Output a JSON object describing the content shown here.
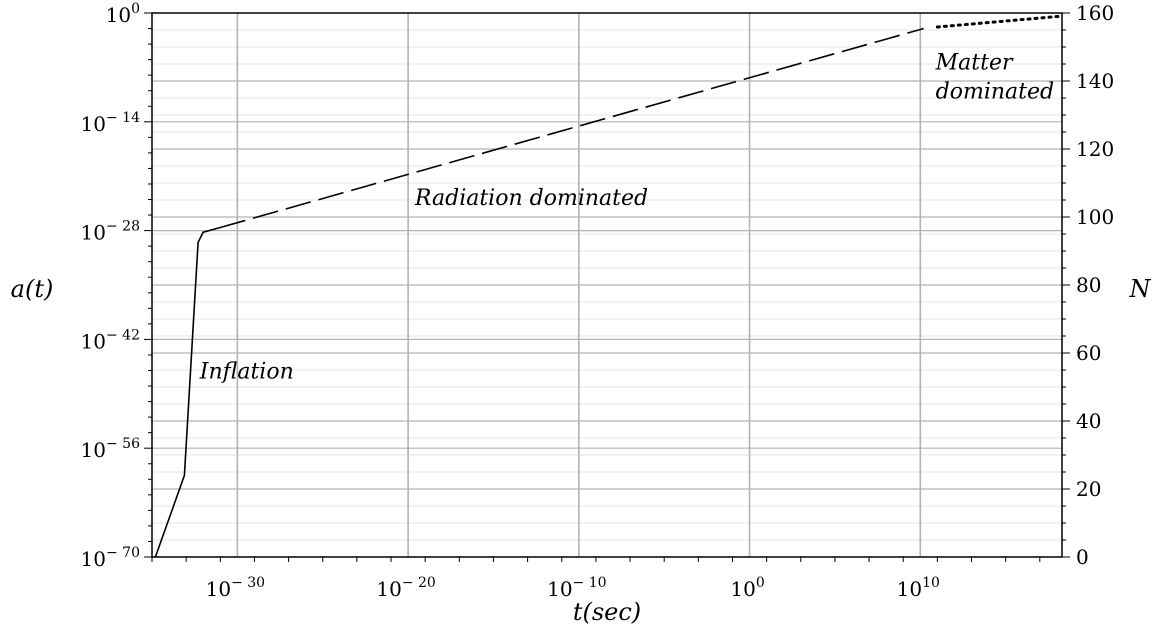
{
  "chart_data": {
    "type": "line",
    "xlabel": "t(sec)",
    "ylabel_left": "a(t)",
    "ylabel_right": "N",
    "x_scale": "log",
    "y_left_scale": "log",
    "xlim_log10": [
      -35,
      18.3
    ],
    "ylim_left_log10": [
      -70,
      0
    ],
    "ylim_right": [
      0,
      160
    ],
    "grid": true,
    "x_ticks": [
      {
        "base": "10",
        "exp": "− 30",
        "log10": -30
      },
      {
        "base": "10",
        "exp": "− 20",
        "log10": -20
      },
      {
        "base": "10",
        "exp": "− 10",
        "log10": -10
      },
      {
        "base": "10",
        "exp": "0",
        "log10": 0
      },
      {
        "base": "10",
        "exp": "10",
        "log10": 10
      }
    ],
    "y_left_ticks": [
      {
        "base": "10",
        "exp": "0",
        "log10": 0
      },
      {
        "base": "10",
        "exp": "− 14",
        "log10": -14
      },
      {
        "base": "10",
        "exp": "− 28",
        "log10": -28
      },
      {
        "base": "10",
        "exp": "− 42",
        "log10": -42
      },
      {
        "base": "10",
        "exp": "− 56",
        "log10": -56
      },
      {
        "base": "10",
        "exp": "− 70",
        "log10": -70
      }
    ],
    "y_right_ticks": [
      {
        "label": "160",
        "value": 160
      },
      {
        "label": "140",
        "value": 140
      },
      {
        "label": "120",
        "value": 120
      },
      {
        "label": "100",
        "value": 100
      },
      {
        "label": "80",
        "value": 80
      },
      {
        "label": "60",
        "value": 60
      },
      {
        "label": "40",
        "value": 40
      },
      {
        "label": "20",
        "value": 20
      },
      {
        "label": "0",
        "value": 0
      }
    ],
    "series": [
      {
        "name": "Inflation",
        "style": "solid",
        "points_log10": [
          [
            -34.8,
            -70
          ],
          [
            -33.1,
            -59.5
          ],
          [
            -32.3,
            -29.5
          ],
          [
            -32.0,
            -28.2
          ],
          [
            -31.0,
            -27.6
          ]
        ]
      },
      {
        "name": "Radiation dominated",
        "style": "dashed",
        "points_log10": [
          [
            -31.0,
            -27.6
          ],
          [
            10.2,
            -2.0
          ]
        ]
      },
      {
        "name": "Matter dominated",
        "style": "dotted",
        "points_log10": [
          [
            11.0,
            -1.8
          ],
          [
            18.3,
            -0.4
          ]
        ]
      }
    ],
    "annotations": [
      {
        "text": "Inflation",
        "at_log10": [
          -32.2,
          -47
        ]
      },
      {
        "text": "Radiation dominated",
        "at_log10": [
          -19.6,
          -24.7
        ]
      },
      {
        "text": "Matter",
        "at_log10": [
          10.9,
          -7.3
        ]
      },
      {
        "text": "dominated",
        "at_log10": [
          10.9,
          -11.0
        ]
      }
    ]
  }
}
